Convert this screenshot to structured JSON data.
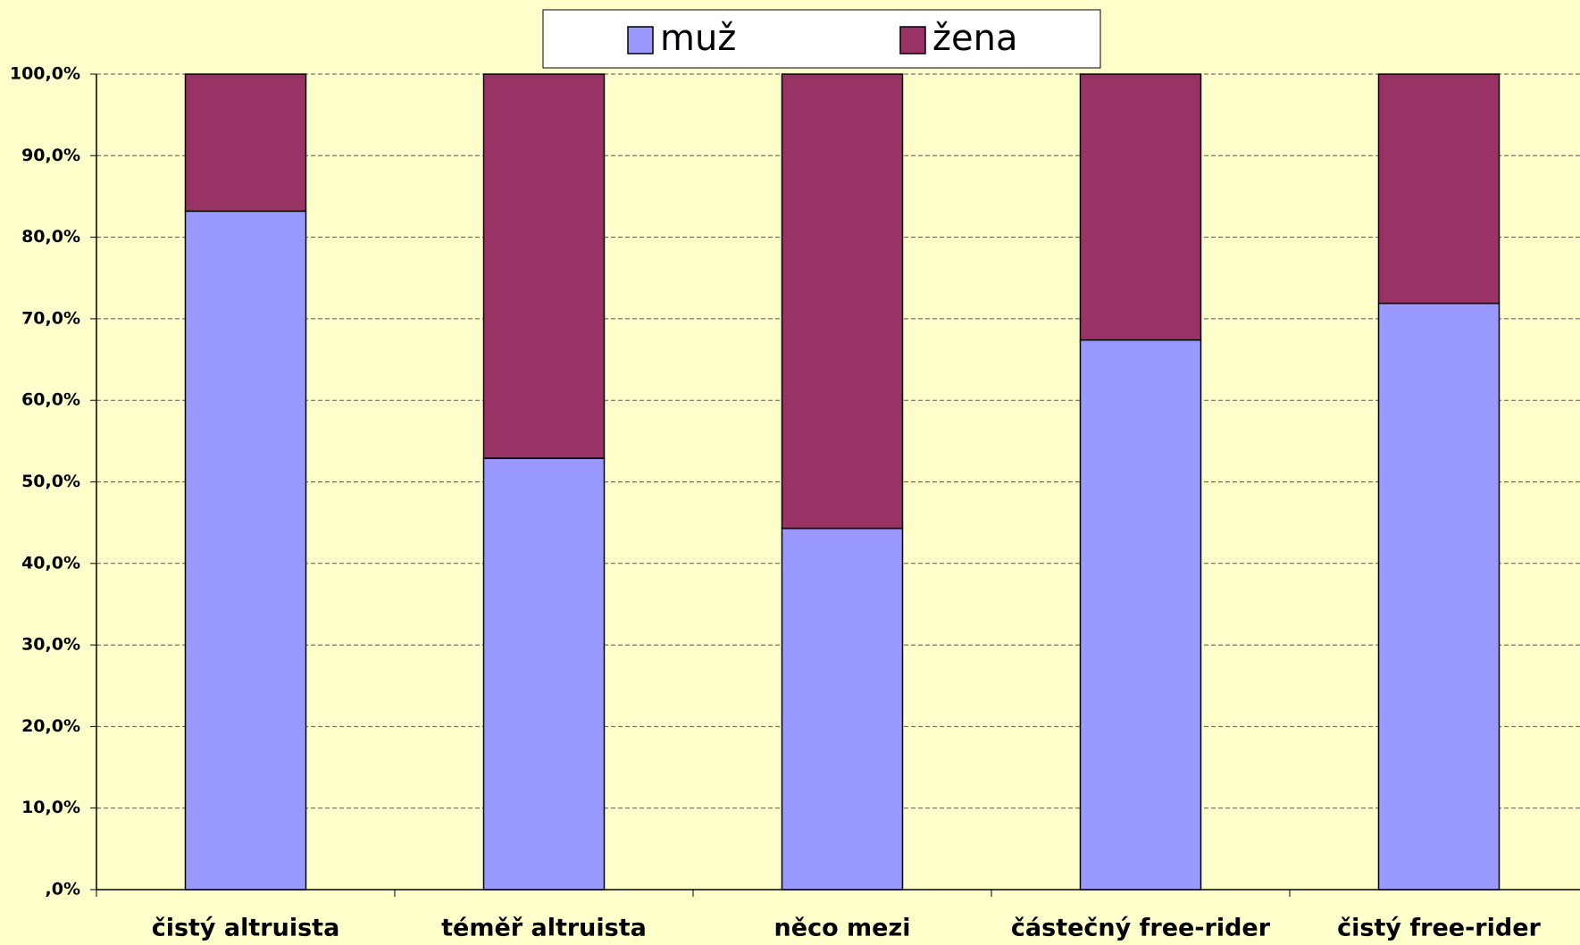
{
  "chart_data": {
    "type": "stacked_bar",
    "categories": [
      "čistý altruista",
      "téměř altruista",
      "něco mezi",
      "částečný free-rider",
      "čistý free-rider"
    ],
    "series": [
      {
        "name": "muž",
        "color": "#9999ff",
        "values": [
          83.2,
          52.9,
          44.3,
          67.4,
          71.9
        ]
      },
      {
        "name": "žena",
        "color": "#993366",
        "values": [
          16.8,
          47.1,
          55.7,
          32.6,
          28.1
        ]
      }
    ],
    "ylim": [
      0,
      100
    ],
    "yticks": [
      {
        "value": 0,
        "label": ",0%"
      },
      {
        "value": 10,
        "label": "10,0%"
      },
      {
        "value": 20,
        "label": "20,0%"
      },
      {
        "value": 30,
        "label": "30,0%"
      },
      {
        "value": 40,
        "label": "40,0%"
      },
      {
        "value": 50,
        "label": "50,0%"
      },
      {
        "value": 60,
        "label": "60,0%"
      },
      {
        "value": 70,
        "label": "70,0%"
      },
      {
        "value": 80,
        "label": "80,0%"
      },
      {
        "value": 90,
        "label": "90,0%"
      },
      {
        "value": 100,
        "label": "100,0%"
      }
    ],
    "grid": true,
    "legend": "top"
  }
}
